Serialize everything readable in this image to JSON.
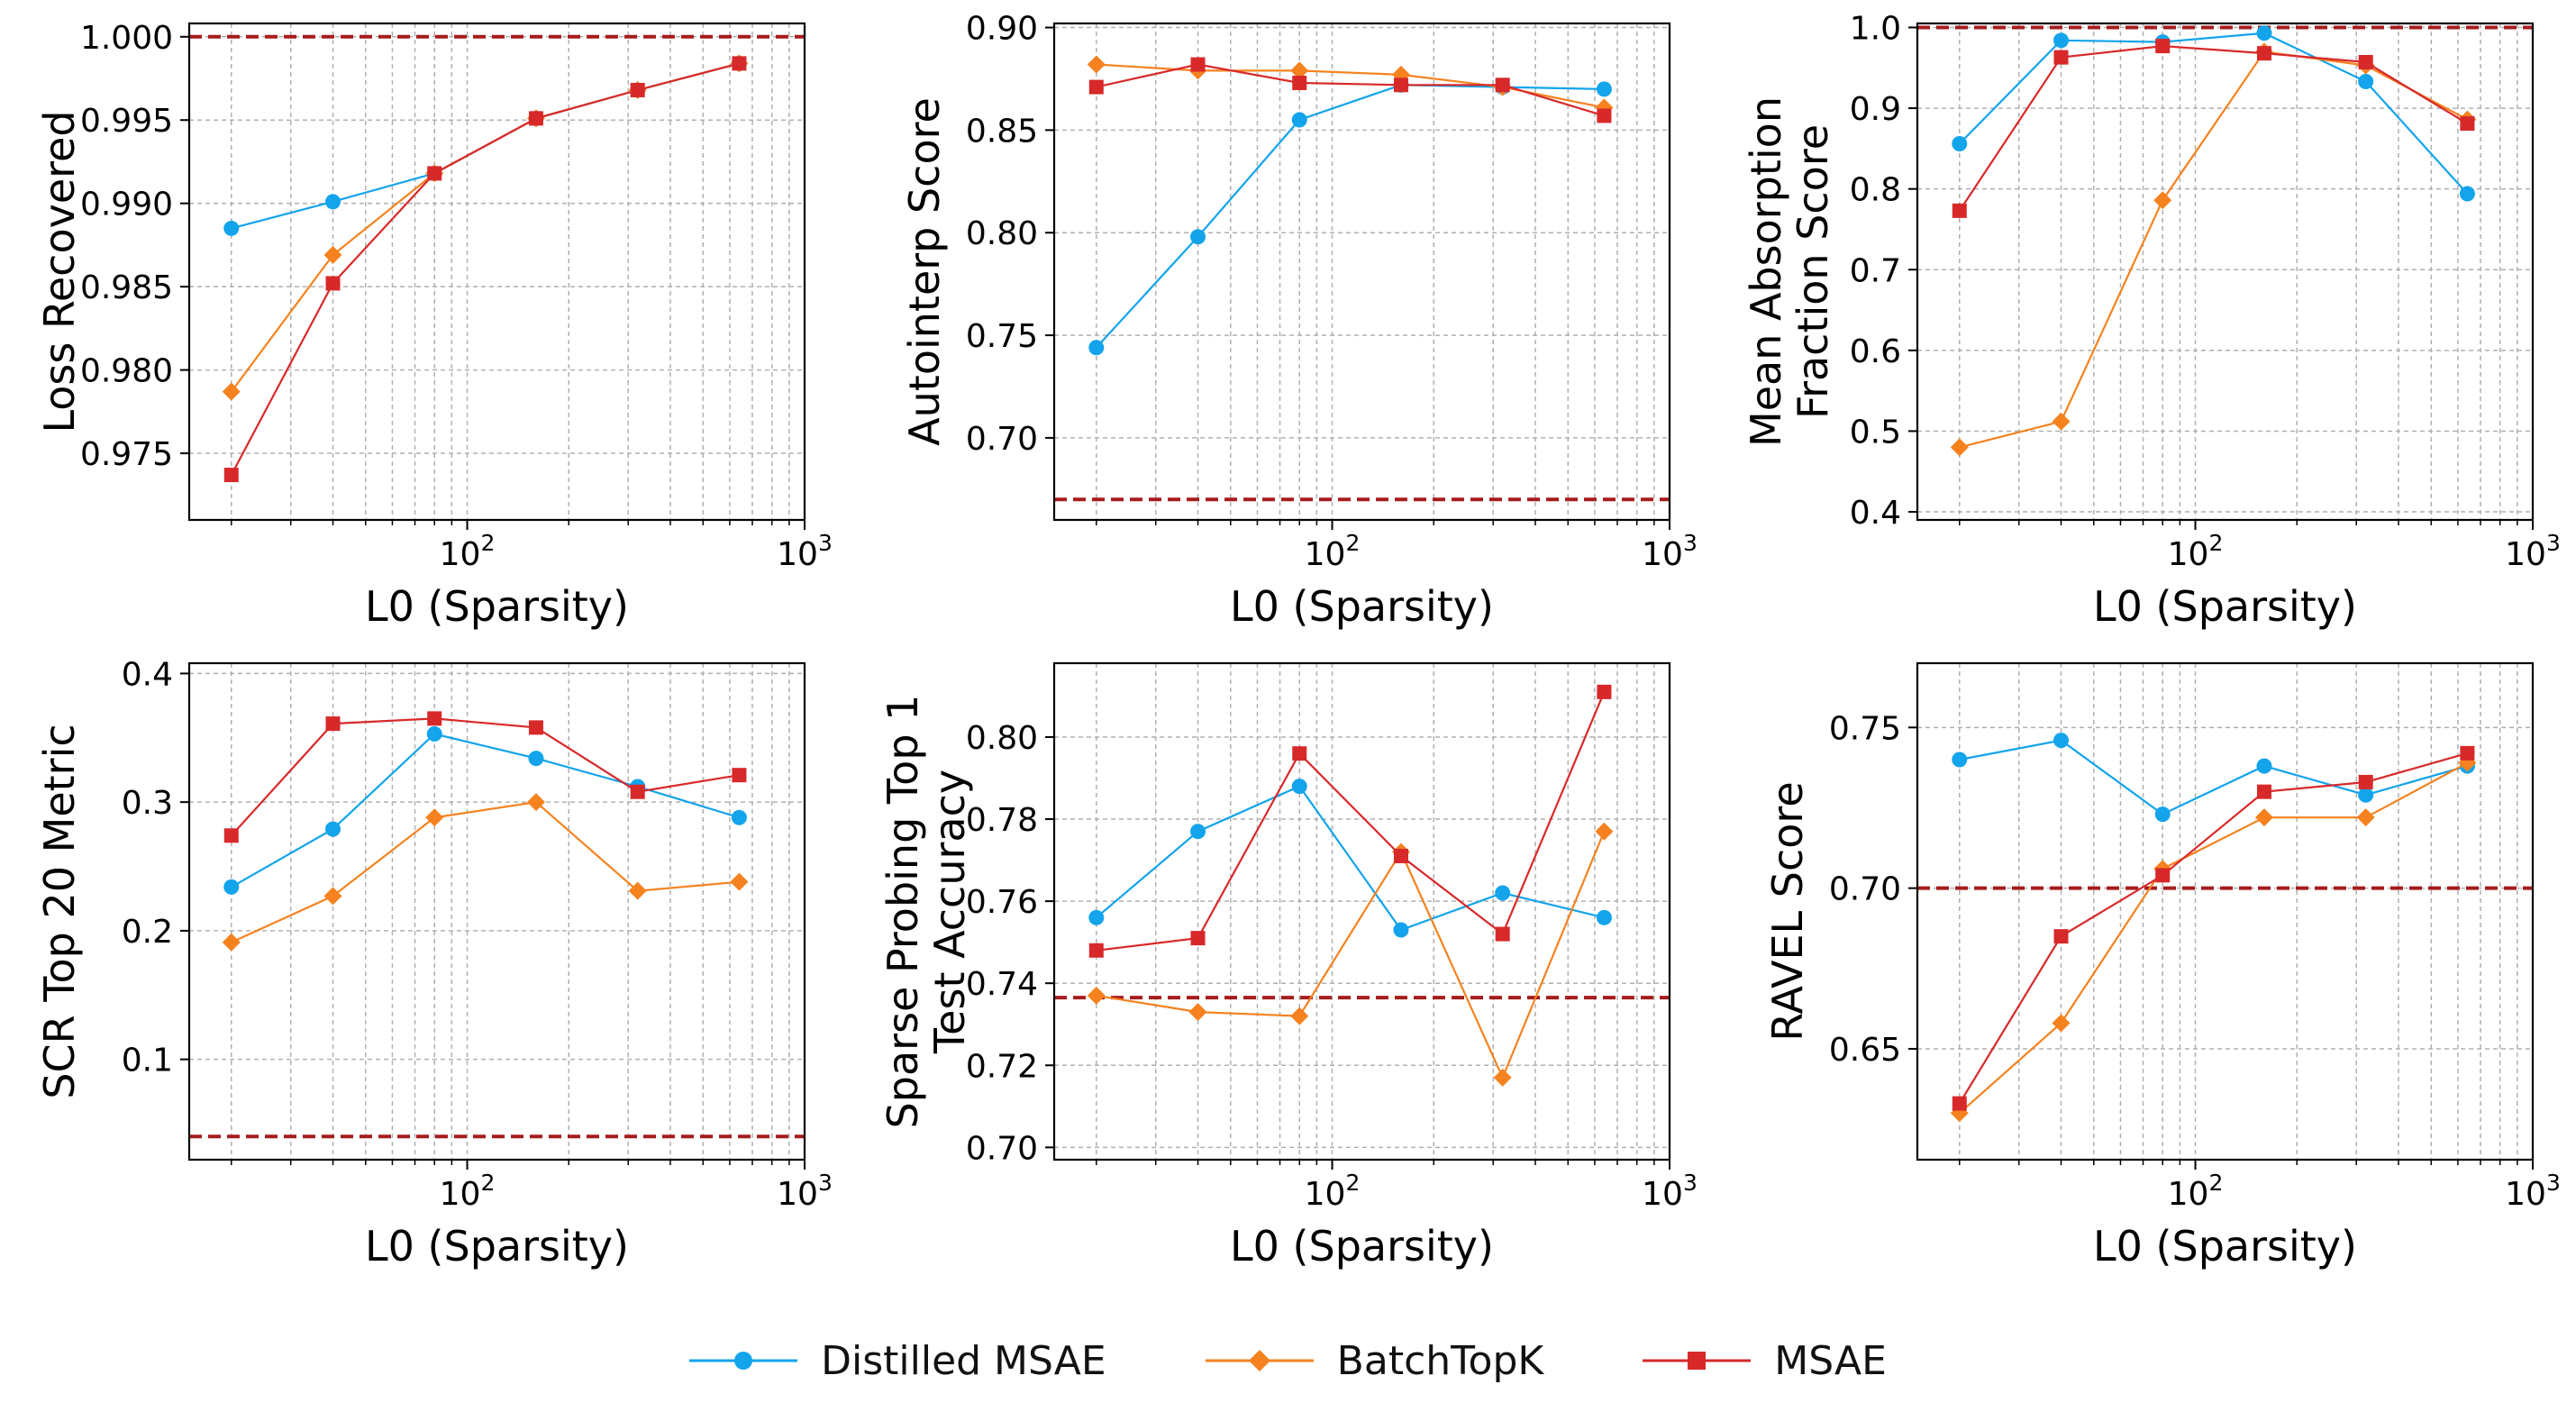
{
  "legend": [
    {
      "name": "Distilled MSAE",
      "color": "#13a4ec",
      "marker": "circle"
    },
    {
      "name": "BatchTopK",
      "color": "#f5821f",
      "marker": "diamond"
    },
    {
      "name": "MSAE",
      "color": "#d8292a",
      "marker": "square"
    }
  ],
  "chart_data": [
    {
      "type": "line",
      "title": "",
      "xlabel": "L0 (Sparsity)",
      "ylabel": [
        "Loss Recovered"
      ],
      "xscale": "log",
      "xlim": [
        15,
        1000
      ],
      "ylim": [
        0.971,
        1.0008
      ],
      "yticks": [
        0.975,
        0.98,
        0.985,
        0.99,
        0.995,
        1.0
      ],
      "ytick_labels": [
        "0.975",
        "0.980",
        "0.985",
        "0.990",
        "0.995",
        "1.000"
      ],
      "xticks": [
        100,
        1000
      ],
      "xtick_labels": [
        "10^2",
        "10^3"
      ],
      "grid": true,
      "baseline": 1.0,
      "x": [
        20,
        40,
        80,
        160,
        320,
        640
      ],
      "series": [
        {
          "name": "Distilled MSAE",
          "values": [
            0.9885,
            0.9901,
            0.9918,
            0.9951,
            0.9968,
            0.9984
          ]
        },
        {
          "name": "BatchTopK",
          "values": [
            0.9787,
            0.9869,
            0.9918,
            0.9951,
            0.9968,
            0.9984
          ]
        },
        {
          "name": "MSAE",
          "values": [
            0.9737,
            0.9852,
            0.9918,
            0.9951,
            0.9968,
            0.9984
          ]
        }
      ]
    },
    {
      "type": "line",
      "title": "",
      "xlabel": "L0 (Sparsity)",
      "ylabel": [
        "Autointerp Score"
      ],
      "xscale": "log",
      "xlim": [
        15,
        1000
      ],
      "ylim": [
        0.66,
        0.902
      ],
      "yticks": [
        0.7,
        0.75,
        0.8,
        0.85,
        0.9
      ],
      "ytick_labels": [
        "0.70",
        "0.75",
        "0.80",
        "0.85",
        "0.90"
      ],
      "xticks": [
        100,
        1000
      ],
      "xtick_labels": [
        "10^2",
        "10^3"
      ],
      "grid": true,
      "baseline": 0.67,
      "x": [
        20,
        40,
        80,
        160,
        320,
        640
      ],
      "series": [
        {
          "name": "Distilled MSAE",
          "values": [
            0.744,
            0.798,
            0.855,
            0.872,
            0.871,
            0.87
          ]
        },
        {
          "name": "BatchTopK",
          "values": [
            0.882,
            0.879,
            0.879,
            0.877,
            0.871,
            0.861
          ]
        },
        {
          "name": "MSAE",
          "values": [
            0.871,
            0.882,
            0.873,
            0.872,
            0.872,
            0.857
          ]
        }
      ]
    },
    {
      "type": "line",
      "title": "",
      "xlabel": "L0 (Sparsity)",
      "ylabel": [
        "Mean Absorption",
        "Fraction Score"
      ],
      "xscale": "log",
      "xlim": [
        15,
        1000
      ],
      "ylim": [
        0.39,
        1.005
      ],
      "yticks": [
        0.4,
        0.5,
        0.6,
        0.7,
        0.8,
        0.9,
        1.0
      ],
      "ytick_labels": [
        "0.4",
        "0.5",
        "0.6",
        "0.7",
        "0.8",
        "0.9",
        "1.0"
      ],
      "xticks": [
        100,
        1000
      ],
      "xtick_labels": [
        "10^2",
        "10^3"
      ],
      "grid": true,
      "baseline": 1.0,
      "x": [
        20,
        40,
        80,
        160,
        320,
        640
      ],
      "series": [
        {
          "name": "Distilled MSAE",
          "values": [
            0.856,
            0.984,
            0.982,
            0.993,
            0.933,
            0.794
          ]
        },
        {
          "name": "BatchTopK",
          "values": [
            0.48,
            0.512,
            0.786,
            0.97,
            0.953,
            0.886
          ]
        },
        {
          "name": "MSAE",
          "values": [
            0.773,
            0.963,
            0.977,
            0.968,
            0.957,
            0.881
          ]
        }
      ]
    },
    {
      "type": "line",
      "title": "",
      "xlabel": "L0 (Sparsity)",
      "ylabel": [
        "SCR Top 20 Metric"
      ],
      "xscale": "log",
      "xlim": [
        15,
        1000
      ],
      "ylim": [
        0.022,
        0.408
      ],
      "yticks": [
        0.1,
        0.2,
        0.3,
        0.4
      ],
      "ytick_labels": [
        "0.1",
        "0.2",
        "0.3",
        "0.4"
      ],
      "xticks": [
        100,
        1000
      ],
      "xtick_labels": [
        "10^2",
        "10^3"
      ],
      "grid": true,
      "baseline": 0.04,
      "x": [
        20,
        40,
        80,
        160,
        320,
        640
      ],
      "series": [
        {
          "name": "Distilled MSAE",
          "values": [
            0.234,
            0.279,
            0.353,
            0.334,
            0.312,
            0.288
          ]
        },
        {
          "name": "BatchTopK",
          "values": [
            0.191,
            0.227,
            0.288,
            0.3,
            0.231,
            0.238
          ]
        },
        {
          "name": "MSAE",
          "values": [
            0.274,
            0.361,
            0.365,
            0.358,
            0.308,
            0.321
          ]
        }
      ]
    },
    {
      "type": "line",
      "title": "",
      "xlabel": "L0 (Sparsity)",
      "ylabel": [
        "Sparse Probing Top 1",
        "Test Accuracy"
      ],
      "xscale": "log",
      "xlim": [
        15,
        1000
      ],
      "ylim": [
        0.697,
        0.818
      ],
      "yticks": [
        0.7,
        0.72,
        0.74,
        0.76,
        0.78,
        0.8
      ],
      "ytick_labels": [
        "0.70",
        "0.72",
        "0.74",
        "0.76",
        "0.78",
        "0.80"
      ],
      "xticks": [
        100,
        1000
      ],
      "xtick_labels": [
        "10^2",
        "10^3"
      ],
      "grid": true,
      "baseline": 0.7365,
      "x": [
        20,
        40,
        80,
        160,
        320,
        640
      ],
      "series": [
        {
          "name": "Distilled MSAE",
          "values": [
            0.756,
            0.777,
            0.788,
            0.753,
            0.762,
            0.756
          ]
        },
        {
          "name": "BatchTopK",
          "values": [
            0.737,
            0.733,
            0.732,
            0.772,
            0.717,
            0.777
          ]
        },
        {
          "name": "MSAE",
          "values": [
            0.748,
            0.751,
            0.796,
            0.771,
            0.752,
            0.811
          ]
        }
      ]
    },
    {
      "type": "line",
      "title": "",
      "xlabel": "L0 (Sparsity)",
      "ylabel": [
        "RAVEL Score"
      ],
      "xscale": "log",
      "xlim": [
        15,
        1000
      ],
      "ylim": [
        0.6155,
        0.77
      ],
      "yticks": [
        0.65,
        0.7,
        0.75
      ],
      "ytick_labels": [
        "0.65",
        "0.70",
        "0.75"
      ],
      "xticks": [
        100,
        1000
      ],
      "xtick_labels": [
        "10^2",
        "10^3"
      ],
      "grid": true,
      "baseline": 0.7,
      "x": [
        20,
        40,
        80,
        160,
        320,
        640
      ],
      "series": [
        {
          "name": "Distilled MSAE",
          "values": [
            0.74,
            0.746,
            0.723,
            0.738,
            0.729,
            0.738
          ]
        },
        {
          "name": "BatchTopK",
          "values": [
            0.63,
            0.658,
            0.706,
            0.722,
            0.722,
            0.739
          ]
        },
        {
          "name": "MSAE",
          "values": [
            0.633,
            0.685,
            0.704,
            0.73,
            0.733,
            0.742
          ]
        }
      ]
    }
  ]
}
